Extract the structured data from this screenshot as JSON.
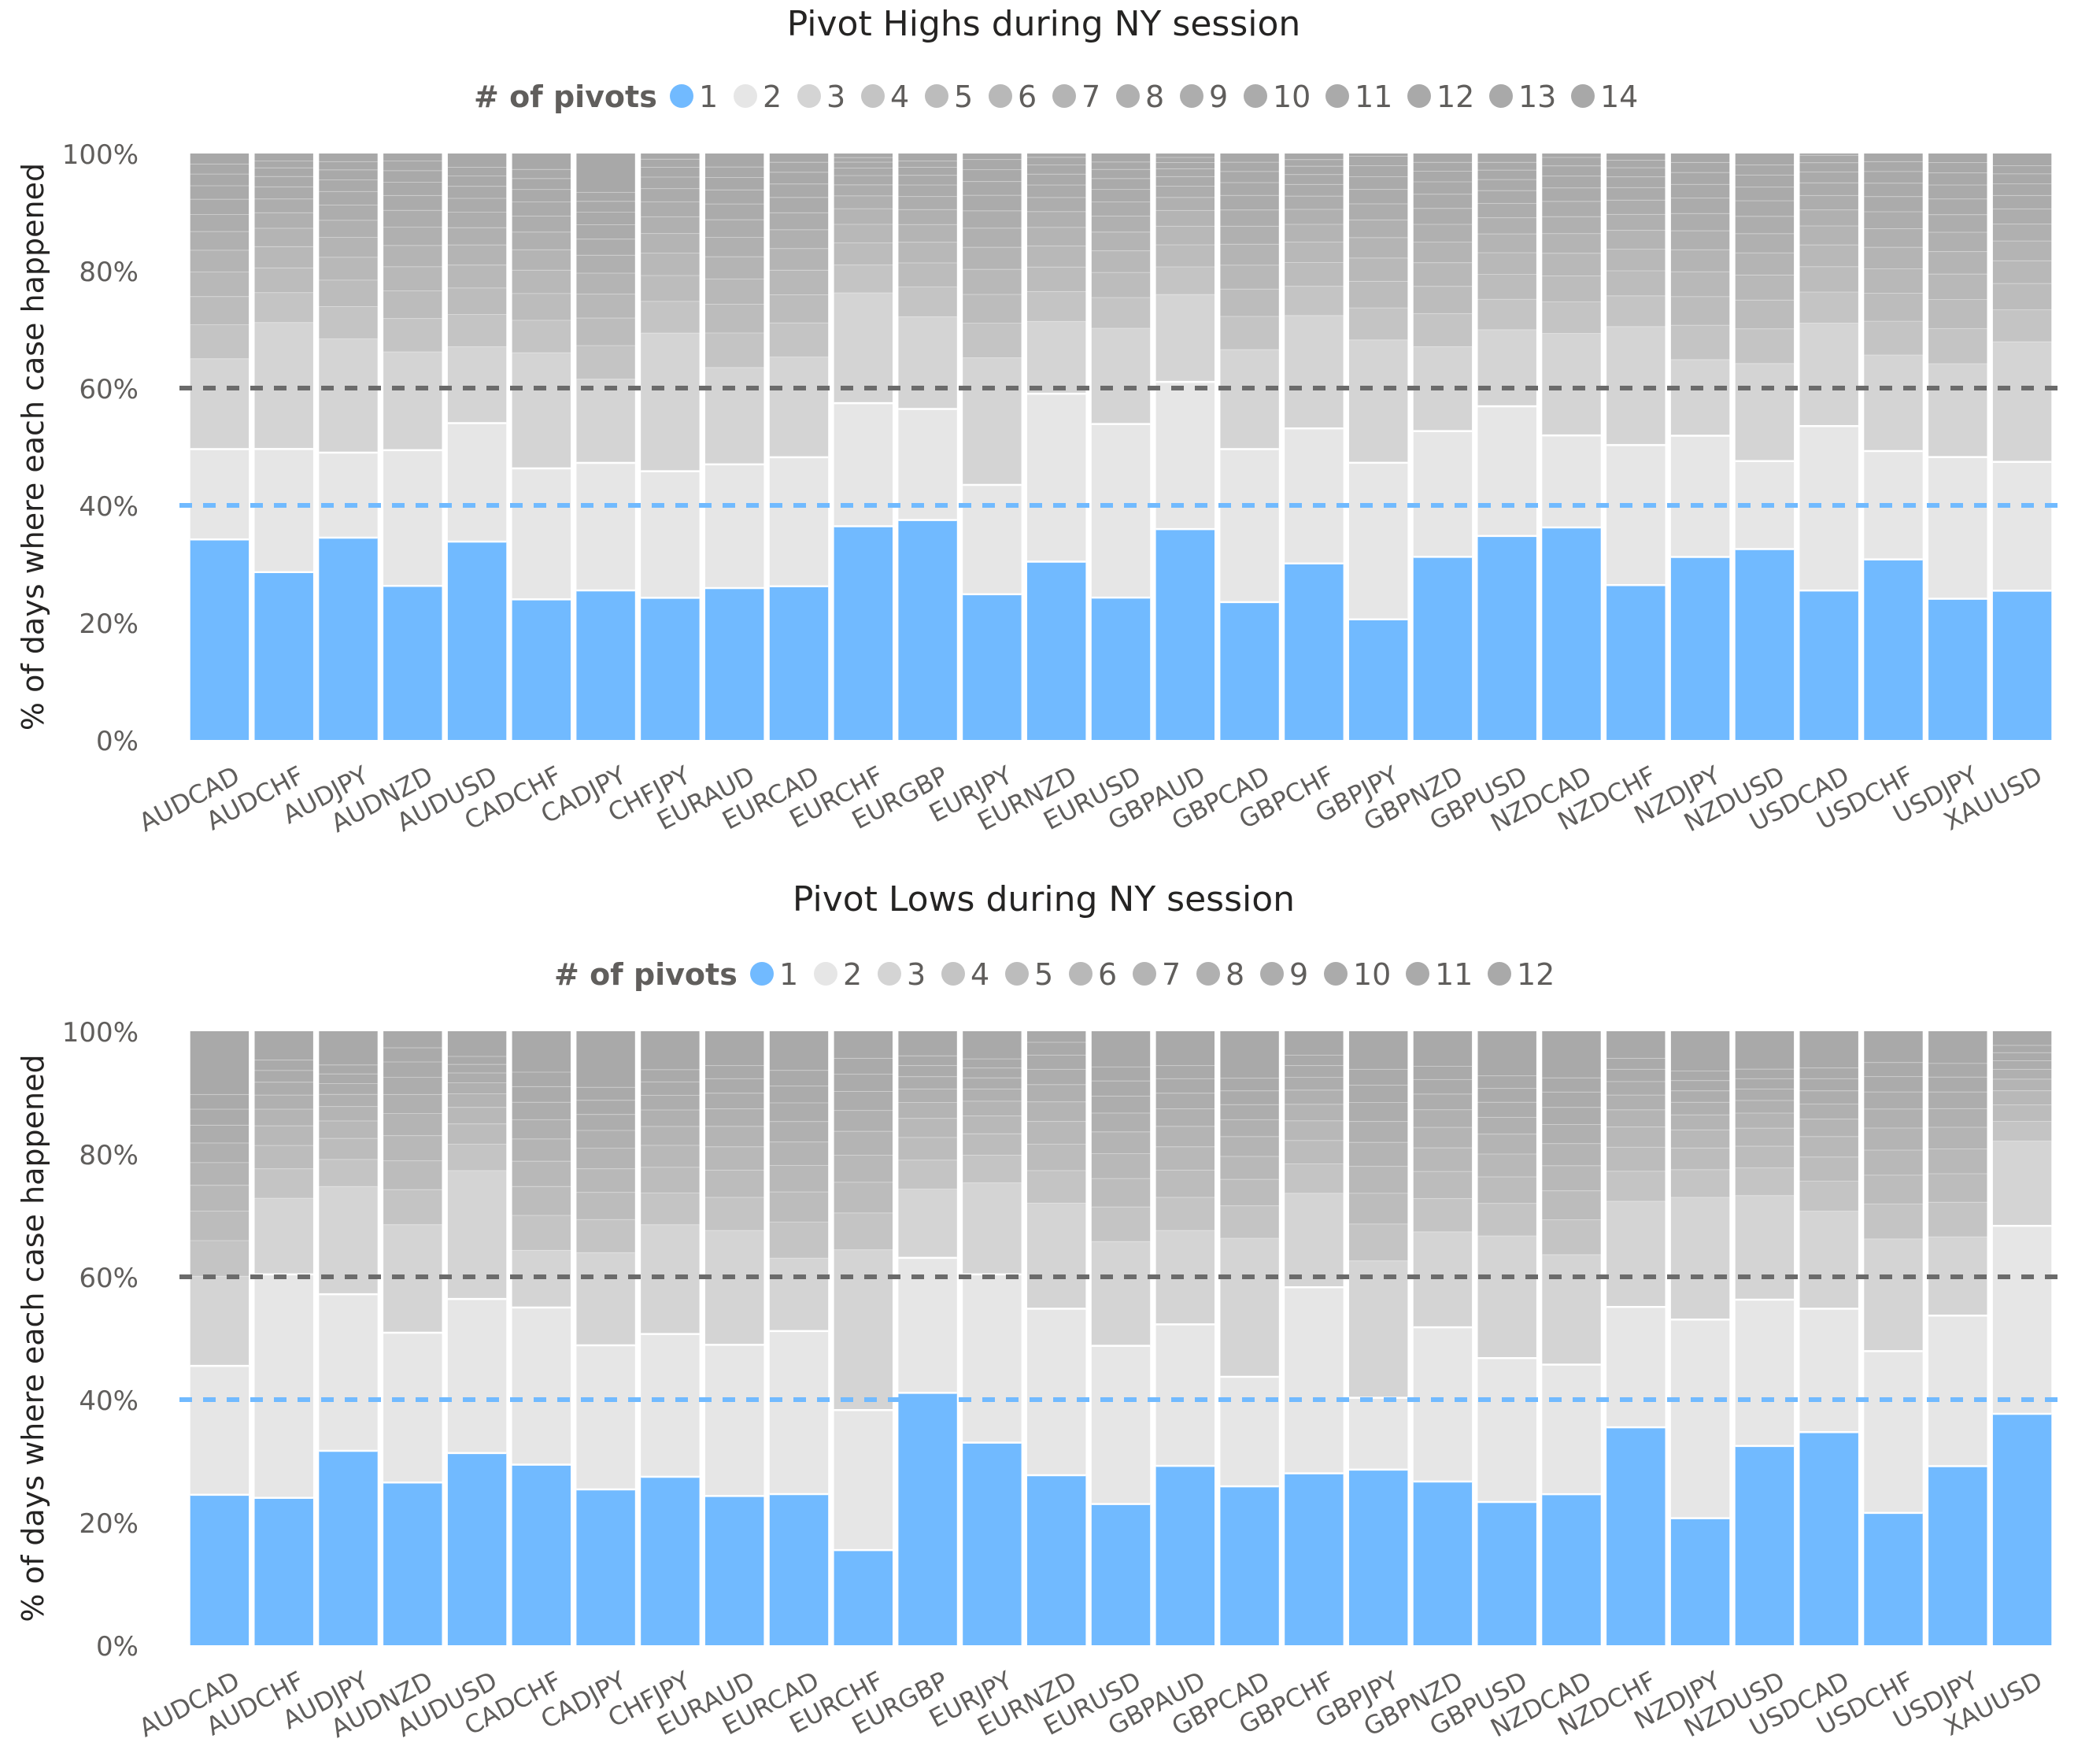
{
  "chart_data": [
    {
      "type": "bar",
      "stacked": true,
      "percent_stacked": true,
      "title": "Pivot Highs during NY session",
      "legend_title": "# of pivots",
      "legend_position": "top",
      "legend_entries": [
        "1",
        "2",
        "3",
        "4",
        "5",
        "6",
        "7",
        "8",
        "9",
        "10",
        "11",
        "12",
        "13",
        "14"
      ],
      "ylabel": "% of days where each case happened",
      "ylim": [
        0,
        100
      ],
      "yticks": [
        "0%",
        "20%",
        "40%",
        "60%",
        "80%",
        "100%"
      ],
      "reference_lines": [
        {
          "value": 60,
          "color": "#6b6b6b",
          "style": "dashed"
        },
        {
          "value": 40,
          "color": "#71baff",
          "style": "dashed"
        }
      ],
      "categories": [
        "AUDCAD",
        "AUDCHF",
        "AUDJPY",
        "AUDNZD",
        "AUDUSD",
        "CADCHF",
        "CADJPY",
        "CHFJPY",
        "EURAUD",
        "EURCAD",
        "EURCHF",
        "EURGBP",
        "EURJPY",
        "EURNZD",
        "EURUSD",
        "GBPAUD",
        "GBPCAD",
        "GBPCHF",
        "GBPJPY",
        "GBPNZD",
        "GBPUSD",
        "NZDCAD",
        "NZDCHF",
        "NZDJPY",
        "NZDUSD",
        "USDCAD",
        "USDCHF",
        "USDJPY",
        "XAUUSD"
      ],
      "series": [
        {
          "name": "1",
          "color": "#71baff",
          "values": [
            34.2,
            29.2,
            34.5,
            26.8,
            34.5,
            24.7,
            25.0,
            24.7,
            25.9,
            26.2,
            36.8,
            38.4,
            24.4,
            32.8,
            25.0,
            37.4,
            23.7,
            31.9,
            21.8,
            31.0,
            36.8,
            37.7,
            27.2,
            30.8,
            31.9,
            26.0,
            31.0,
            23.3,
            25.6
          ]
        },
        {
          "name": "2",
          "color": "#e6e6e6",
          "values": [
            15.4,
            21.4,
            14.5,
            23.6,
            20.6,
            23.0,
            21.3,
            22.0,
            21.1,
            22.0,
            21.2,
            19.4,
            18.3,
            30.9,
            30.5,
            26.1,
            26.3,
            24.4,
            28.3,
            21.3,
            23.4,
            16.3,
            24.6,
            20.4,
            14.7,
            28.6,
            18.6,
            23.4,
            22.1
          ]
        },
        {
          "name": "3",
          "color": "#d4d4d4",
          "values": [
            15.4,
            22.0,
            19.4,
            17.1,
            13.3,
            20.3,
            14.0,
            24.0,
            16.5,
            17.1,
            19.0,
            16.1,
            21.3,
            13.3,
            16.8,
            15.5,
            17.1,
            20.4,
            22.2,
            14.3,
            13.8,
            18.1,
            20.8,
            12.8,
            16.3,
            17.9,
            16.5,
            15.4,
            20.6
          ]
        },
        {
          "name": "4",
          "color": "#c4c4c4",
          "values": [
            5.8,
            5.2,
            5.5,
            5.8,
            5.6,
            5.7,
            5.6,
            5.5,
            5.9,
            5.8,
            4.8,
            5.2,
            5.8,
            5.5,
            5.4,
            4.9,
            5.7,
            5.3,
            5.8,
            5.6,
            5.5,
            5.6,
            5.4,
            5.8,
            5.8,
            5.4,
            5.8,
            5.8,
            5.5
          ]
        },
        {
          "name": "5",
          "color": "#bcbcbc",
          "values": [
            4.8,
            4.3,
            4.5,
            4.8,
            4.6,
            4.7,
            4.6,
            4.5,
            4.9,
            4.8,
            3.8,
            4.2,
            4.8,
            4.5,
            4.4,
            3.9,
            4.7,
            4.3,
            4.8,
            4.6,
            4.5,
            4.6,
            4.4,
            4.8,
            4.8,
            4.4,
            4.8,
            4.8,
            4.5
          ]
        },
        {
          "name": "6",
          "color": "#b8b8b8",
          "values": [
            4.2,
            3.7,
            3.9,
            4.2,
            4.0,
            4.1,
            4.0,
            3.9,
            4.3,
            4.2,
            3.2,
            3.6,
            4.2,
            3.9,
            3.8,
            3.3,
            4.1,
            3.7,
            4.2,
            4.0,
            3.9,
            4.0,
            3.8,
            4.2,
            4.2,
            3.8,
            4.2,
            4.2,
            3.9
          ]
        },
        {
          "name": "7",
          "color": "#b4b4b4",
          "values": [
            3.7,
            3.2,
            3.4,
            3.7,
            3.5,
            3.6,
            3.5,
            3.4,
            3.8,
            3.7,
            2.7,
            3.1,
            3.7,
            3.4,
            3.3,
            2.8,
            3.6,
            3.2,
            3.7,
            3.5,
            3.4,
            3.5,
            3.3,
            3.7,
            3.7,
            3.3,
            3.7,
            3.7,
            3.4
          ]
        },
        {
          "name": "8",
          "color": "#b0b0b0",
          "values": [
            3.2,
            2.7,
            2.9,
            3.2,
            3.0,
            3.1,
            3.0,
            2.9,
            3.3,
            3.2,
            2.2,
            2.6,
            3.2,
            2.9,
            2.8,
            2.3,
            3.1,
            2.7,
            3.2,
            3.0,
            2.9,
            3.0,
            2.8,
            3.2,
            3.2,
            2.8,
            3.2,
            3.2,
            2.9
          ]
        },
        {
          "name": "9",
          "color": "#adadad",
          "values": [
            2.9,
            2.4,
            2.6,
            2.9,
            2.7,
            2.8,
            2.7,
            2.6,
            3.0,
            2.9,
            1.9,
            2.3,
            2.9,
            2.6,
            2.5,
            2.0,
            2.8,
            2.4,
            2.9,
            2.7,
            2.6,
            2.7,
            2.5,
            2.9,
            2.9,
            2.5,
            2.9,
            2.9,
            2.6
          ]
        },
        {
          "name": "10",
          "color": "#ababab",
          "values": [
            2.6,
            2.1,
            2.3,
            2.6,
            2.4,
            2.5,
            2.4,
            2.3,
            2.7,
            2.6,
            1.6,
            2.0,
            2.6,
            2.3,
            2.2,
            1.7,
            2.5,
            2.1,
            2.6,
            2.4,
            2.3,
            2.4,
            2.2,
            2.6,
            2.6,
            2.2,
            2.6,
            2.6,
            2.3
          ]
        },
        {
          "name": "11",
          "color": "#aaaaaa",
          "values": [
            2.3,
            1.8,
            2.0,
            2.3,
            2.1,
            2.2,
            2.1,
            2.0,
            2.4,
            2.3,
            1.3,
            1.7,
            2.3,
            2.0,
            1.9,
            1.4,
            2.2,
            1.8,
            2.3,
            2.1,
            2.0,
            2.1,
            1.9,
            2.3,
            2.3,
            1.9,
            2.3,
            2.3,
            2.0
          ]
        },
        {
          "name": "12",
          "color": "#a9a9a9",
          "values": [
            2.0,
            1.5,
            1.7,
            2.0,
            1.8,
            1.9,
            1.8,
            1.7,
            2.1,
            2.0,
            1.0,
            1.4,
            2.0,
            1.7,
            1.6,
            1.1,
            1.9,
            1.5,
            2.0,
            1.8,
            1.7,
            1.8,
            1.6,
            2.0,
            2.0,
            1.6,
            2.0,
            2.0,
            1.7
          ]
        },
        {
          "name": "13",
          "color": "#a9a9a9",
          "values": [
            1.7,
            1.2,
            1.4,
            1.7,
            1.5,
            1.6,
            1.5,
            1.4,
            1.8,
            1.7,
            0.8,
            1.1,
            1.7,
            1.4,
            1.3,
            0.9,
            1.6,
            1.2,
            1.7,
            1.5,
            1.4,
            1.5,
            1.3,
            1.7,
            1.7,
            1.3,
            1.7,
            1.7,
            1.4
          ]
        },
        {
          "name": "14",
          "color": "#a8a8a8",
          "values": [
            1.8,
            1.3,
            1.4,
            1.3,
            2.4,
            2.8,
            6.5,
            1.0,
            2.3,
            1.5,
            0.7,
            1.3,
            1.0,
            0.7,
            1.5,
            0.7,
            1.5,
            1.1,
            0.5,
            1.5,
            1.6,
            0.7,
            1.2,
            1.5,
            1.9,
            0.3,
            1.4,
            1.5,
            2.1
          ]
        }
      ]
    },
    {
      "type": "bar",
      "stacked": true,
      "percent_stacked": true,
      "title": "Pivot Lows during NY session",
      "legend_title": "# of pivots",
      "legend_position": "top",
      "legend_entries": [
        "1",
        "2",
        "3",
        "4",
        "5",
        "6",
        "7",
        "8",
        "9",
        "10",
        "11",
        "12"
      ],
      "ylabel": "% of days where each case happened",
      "ylim": [
        0,
        100
      ],
      "yticks": [
        "0%",
        "20%",
        "40%",
        "60%",
        "80%",
        "100%"
      ],
      "reference_lines": [
        {
          "value": 60,
          "color": "#6b6b6b",
          "style": "dashed"
        },
        {
          "value": 40,
          "color": "#71baff",
          "style": "dashed"
        }
      ],
      "categories": [
        "AUDCAD",
        "AUDCHF",
        "AUDJPY",
        "AUDNZD",
        "AUDUSD",
        "CADCHF",
        "CADJPY",
        "CHFJPY",
        "EURAUD",
        "EURCAD",
        "EURCHF",
        "EURGBP",
        "EURJPY",
        "EURNZD",
        "EURUSD",
        "GBPAUD",
        "GBPCAD",
        "GBPCHF",
        "GBPJPY",
        "GBPNZD",
        "GBPUSD",
        "NZDCAD",
        "NZDCHF",
        "NZDJPY",
        "NZDUSD",
        "USDCAD",
        "USDCHF",
        "USDJPY",
        "XAUUSD"
      ],
      "series": [
        {
          "name": "1",
          "color": "#71baff",
          "values": [
            24.5,
            24.0,
            32.3,
            26.5,
            31.3,
            30.0,
            26.4,
            27.6,
            24.8,
            25.1,
            15.5,
            41.1,
            33.0,
            27.7,
            23.3,
            29.8,
            26.4,
            28.0,
            28.6,
            27.1,
            23.8,
            24.6,
            35.5,
            21.1,
            33.1,
            35.4,
            21.6,
            28.9,
            37.7
          ]
        },
        {
          "name": "2",
          "color": "#e6e6e6",
          "values": [
            21.0,
            36.4,
            26.0,
            24.4,
            25.1,
            26.1,
            24.4,
            23.4,
            25.1,
            27.1,
            22.8,
            22.0,
            27.4,
            27.1,
            26.1,
            23.5,
            18.2,
            30.3,
            11.7,
            25.5,
            23.9,
            21.1,
            19.6,
            33.0,
            24.3,
            20.5,
            26.4,
            24.3,
            30.6
          ]
        },
        {
          "name": "3",
          "color": "#d4d4d4",
          "values": [
            14.6,
            12.4,
            17.9,
            17.6,
            20.9,
            9.5,
            15.7,
            17.9,
            19.0,
            12.1,
            26.1,
            11.2,
            14.9,
            17.2,
            17.2,
            15.6,
            23.0,
            15.3,
            22.3,
            15.8,
            20.3,
            17.9,
            17.2,
            20.3,
            17.3,
            16.2,
            18.3,
            12.7,
            13.8
          ]
        },
        {
          "name": "4",
          "color": "#c4c4c4",
          "values": [
            5.8,
            4.8,
            4.5,
            5.7,
            4.3,
            5.8,
            5.6,
            5.2,
            5.5,
            6.0,
            6.0,
            4.7,
            4.5,
            5.3,
            5.7,
            5.5,
            5.4,
            4.8,
            6.0,
            5.5,
            5.4,
            5.7,
            4.9,
            4.6,
            4.6,
            5.0,
            5.7,
            5.6,
            3.2
          ]
        },
        {
          "name": "5",
          "color": "#bcbcbc",
          "values": [
            4.8,
            3.8,
            3.5,
            4.7,
            3.3,
            4.8,
            4.6,
            4.2,
            4.5,
            5.0,
            5.0,
            3.7,
            3.5,
            4.3,
            4.7,
            4.5,
            4.4,
            3.8,
            5.0,
            4.5,
            4.4,
            4.7,
            3.9,
            3.6,
            3.6,
            4.0,
            4.7,
            4.6,
            2.7
          ]
        },
        {
          "name": "6",
          "color": "#b8b8b8",
          "values": [
            4.2,
            3.2,
            2.9,
            4.1,
            2.7,
            4.2,
            4.0,
            3.6,
            3.9,
            4.4,
            4.4,
            3.1,
            2.9,
            3.7,
            4.1,
            3.9,
            3.8,
            3.2,
            4.4,
            3.9,
            3.8,
            4.1,
            3.3,
            3.0,
            3.0,
            3.4,
            4.1,
            4.0,
            2.3
          ]
        },
        {
          "name": "7",
          "color": "#b4b4b4",
          "values": [
            3.7,
            2.7,
            2.4,
            3.6,
            2.2,
            3.7,
            3.5,
            3.1,
            3.4,
            3.9,
            3.9,
            2.6,
            2.4,
            3.2,
            3.6,
            3.4,
            3.3,
            2.7,
            3.9,
            3.4,
            3.3,
            3.6,
            2.8,
            2.5,
            2.5,
            2.9,
            3.6,
            3.5,
            1.9
          ]
        },
        {
          "name": "8",
          "color": "#b0b0b0",
          "values": [
            3.2,
            2.3,
            2.0,
            3.1,
            1.8,
            3.2,
            3.0,
            2.7,
            2.9,
            3.4,
            3.4,
            2.2,
            2.0,
            2.8,
            3.1,
            2.9,
            2.8,
            2.3,
            3.4,
            2.9,
            2.8,
            3.1,
            2.4,
            2.1,
            2.1,
            2.5,
            3.1,
            3.0,
            1.6
          ]
        },
        {
          "name": "9",
          "color": "#adadad",
          "values": [
            2.9,
            2.1,
            1.8,
            2.8,
            1.6,
            2.9,
            2.7,
            2.4,
            2.6,
            3.1,
            3.1,
            2.0,
            1.8,
            2.5,
            2.8,
            2.6,
            2.5,
            2.1,
            3.1,
            2.6,
            2.5,
            2.8,
            2.2,
            1.9,
            1.9,
            2.2,
            2.8,
            2.7,
            1.4
          ]
        },
        {
          "name": "10",
          "color": "#ababab",
          "values": [
            2.6,
            1.9,
            1.6,
            2.5,
            1.4,
            2.6,
            2.4,
            2.2,
            2.4,
            2.8,
            2.8,
            1.8,
            1.6,
            2.3,
            2.5,
            2.4,
            2.3,
            1.9,
            2.8,
            2.4,
            2.3,
            2.5,
            2.0,
            1.7,
            1.7,
            2.0,
            2.5,
            2.4,
            1.3
          ]
        },
        {
          "name": "11",
          "color": "#aaaaaa",
          "values": [
            2.4,
            1.7,
            1.5,
            2.3,
            1.3,
            2.4,
            2.2,
            2.0,
            2.2,
            2.6,
            2.6,
            1.6,
            1.5,
            2.1,
            2.3,
            2.2,
            2.1,
            1.7,
            2.6,
            2.2,
            2.1,
            2.3,
            1.8,
            1.6,
            1.6,
            1.8,
            2.3,
            2.2,
            1.2
          ]
        },
        {
          "name": "12",
          "color": "#a9a9a9",
          "values": [
            10.3,
            4.7,
            5.6,
            2.7,
            4.1,
            6.8,
            9.5,
            6.3,
            5.7,
            6.5,
            4.4,
            4.0,
            4.5,
            1.8,
            5.9,
            5.7,
            7.8,
            3.9,
            6.2,
            5.8,
            7.4,
            7.6,
            4.4,
            6.6,
            6.3,
            6.1,
            5.1,
            5.2,
            2.3
          ]
        }
      ]
    }
  ]
}
